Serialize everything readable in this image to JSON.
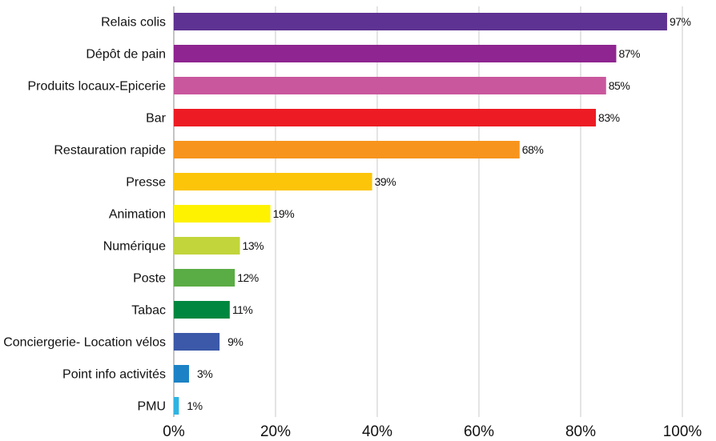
{
  "chart_data": {
    "type": "bar",
    "orientation": "horizontal",
    "categories": [
      "Relais colis",
      "Dépôt de pain",
      "Produits locaux-Epicerie",
      "Bar",
      "Restauration rapide",
      "Presse",
      "Animation",
      "Numérique",
      "Poste",
      "Tabac",
      "Conciergerie- Location vélos",
      "Point info activités",
      "PMU"
    ],
    "values": [
      97,
      87,
      85,
      83,
      68,
      39,
      19,
      13,
      12,
      11,
      9,
      3,
      1
    ],
    "value_labels": [
      "97%",
      "87%",
      "85%",
      "83%",
      "68%",
      "39%",
      "19%",
      "13%",
      "12%",
      "11%",
      "9%",
      "3%",
      "1%"
    ],
    "colors": [
      "#5e3292",
      "#8e2590",
      "#c9579d",
      "#ed1c24",
      "#f7941d",
      "#fcc50a",
      "#fff200",
      "#c2d53a",
      "#5aac44",
      "#00873f",
      "#3b59a8",
      "#1c82c5",
      "#2fb3e2"
    ],
    "xlim": [
      0,
      100
    ],
    "x_ticks": [
      0,
      20,
      40,
      60,
      80,
      100
    ],
    "x_tick_labels": [
      "0%",
      "20%",
      "40%",
      "60%",
      "80%",
      "100%"
    ],
    "grid": true,
    "legend": "none",
    "title": "",
    "xlabel": "",
    "ylabel": ""
  }
}
